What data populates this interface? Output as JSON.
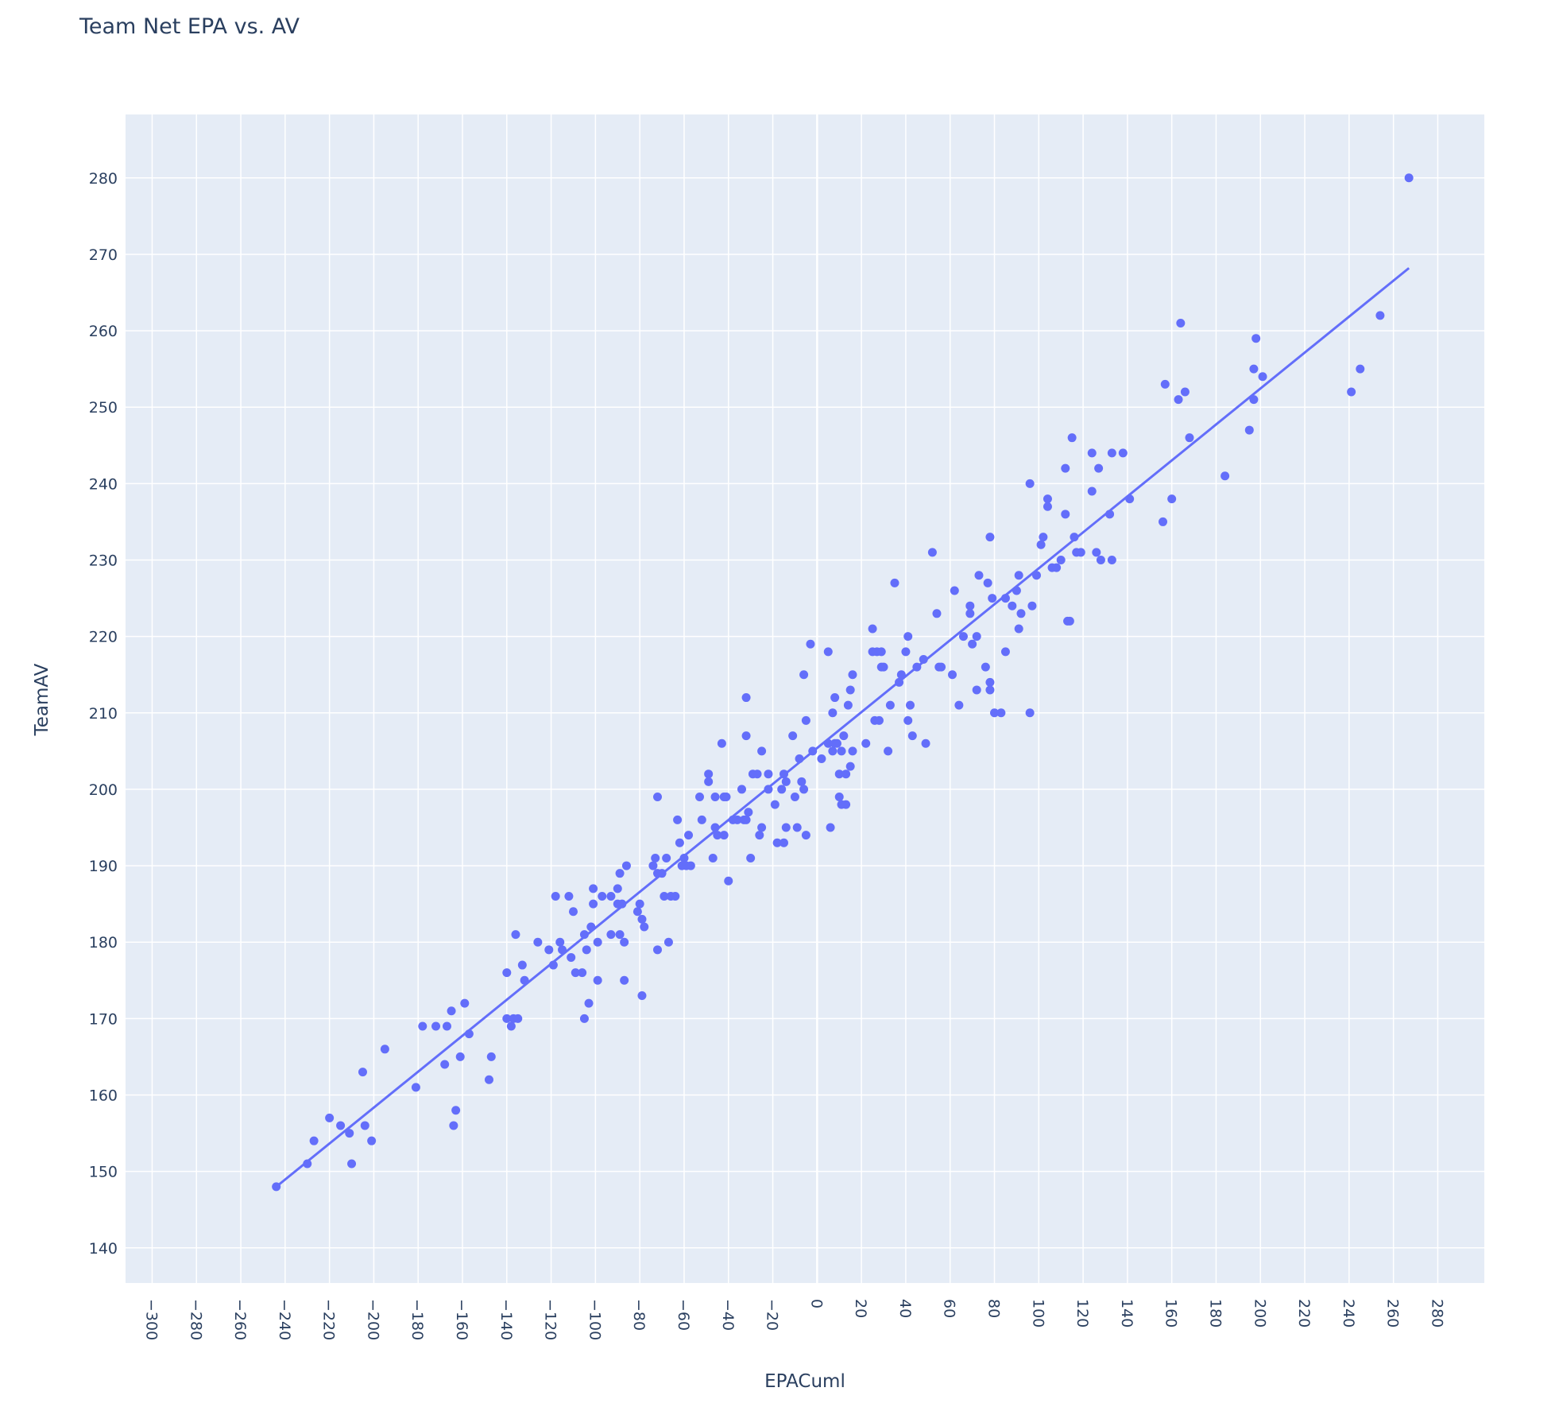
{
  "chart_data": {
    "type": "scatter",
    "title": "Team Net EPA vs. AV",
    "xlabel": "EPACuml",
    "ylabel": "TeamAV",
    "xlim": [
      -312,
      301
    ],
    "ylim": [
      135.4,
      288.3
    ],
    "x_ticks": [
      -300,
      -280,
      -260,
      -240,
      -220,
      -200,
      -180,
      -160,
      -140,
      -120,
      -100,
      -80,
      -60,
      -40,
      -20,
      0,
      20,
      40,
      60,
      80,
      100,
      120,
      140,
      160,
      180,
      200,
      220,
      240,
      260,
      280
    ],
    "y_ticks": [
      140,
      150,
      160,
      170,
      180,
      190,
      200,
      210,
      220,
      230,
      240,
      250,
      260,
      270,
      280
    ],
    "grid": true,
    "legend": "none",
    "colors": {
      "marker": "#636efa",
      "trendline": "#636efa",
      "plot_bg": "#e5ecf6",
      "grid": "#ffffff",
      "text": "#2a3f5f"
    },
    "trendline": {
      "x": [
        -244,
        267
      ],
      "y": [
        148.0,
        268.2
      ]
    },
    "points": [
      [
        -244,
        148
      ],
      [
        -230,
        151
      ],
      [
        -227,
        154
      ],
      [
        -220,
        157
      ],
      [
        -215,
        156
      ],
      [
        -211,
        155
      ],
      [
        -210,
        151
      ],
      [
        -205,
        163
      ],
      [
        -204,
        156
      ],
      [
        -201,
        154
      ],
      [
        -195,
        166
      ],
      [
        -181,
        161
      ],
      [
        -178,
        169
      ],
      [
        -172,
        169
      ],
      [
        -168,
        164
      ],
      [
        -167,
        169
      ],
      [
        -165,
        171
      ],
      [
        -164,
        156
      ],
      [
        -163,
        158
      ],
      [
        -161,
        165
      ],
      [
        -159,
        172
      ],
      [
        -157,
        168
      ],
      [
        -148,
        162
      ],
      [
        -147,
        165
      ],
      [
        -140,
        176
      ],
      [
        -140,
        170
      ],
      [
        -138,
        169
      ],
      [
        -137,
        170
      ],
      [
        -136,
        181
      ],
      [
        -135,
        170
      ],
      [
        -133,
        177
      ],
      [
        -132,
        175
      ],
      [
        -126,
        180
      ],
      [
        -121,
        179
      ],
      [
        -119,
        177
      ],
      [
        -118,
        186
      ],
      [
        -116,
        180
      ],
      [
        -115,
        179
      ],
      [
        -112,
        186
      ],
      [
        -111,
        178
      ],
      [
        -110,
        184
      ],
      [
        -109,
        176
      ],
      [
        -106,
        176
      ],
      [
        -105,
        170
      ],
      [
        -105,
        181
      ],
      [
        -104,
        179
      ],
      [
        -103,
        172
      ],
      [
        -102,
        182
      ],
      [
        -101,
        185
      ],
      [
        -101,
        187
      ],
      [
        -99,
        180
      ],
      [
        -99,
        175
      ],
      [
        -97,
        186
      ],
      [
        -93,
        186
      ],
      [
        -93,
        181
      ],
      [
        -90,
        185
      ],
      [
        -90,
        187
      ],
      [
        -89,
        189
      ],
      [
        -89,
        181
      ],
      [
        -88,
        185
      ],
      [
        -87,
        180
      ],
      [
        -87,
        175
      ],
      [
        -86,
        190
      ],
      [
        -81,
        184
      ],
      [
        -80,
        185
      ],
      [
        -79,
        173
      ],
      [
        -79,
        183
      ],
      [
        -78,
        182
      ],
      [
        -74,
        190
      ],
      [
        -73,
        191
      ],
      [
        -72,
        179
      ],
      [
        -72,
        199
      ],
      [
        -72,
        189
      ],
      [
        -70,
        189
      ],
      [
        -69,
        186
      ],
      [
        -68,
        191
      ],
      [
        -67,
        180
      ],
      [
        -66,
        186
      ],
      [
        -64,
        186
      ],
      [
        -63,
        196
      ],
      [
        -62,
        193
      ],
      [
        -61,
        190
      ],
      [
        -60,
        191
      ],
      [
        -59,
        190
      ],
      [
        -58,
        194
      ],
      [
        -57,
        190
      ],
      [
        -53,
        199
      ],
      [
        -52,
        196
      ],
      [
        -49,
        202
      ],
      [
        -49,
        201
      ],
      [
        -47,
        191
      ],
      [
        -46,
        199
      ],
      [
        -46,
        195
      ],
      [
        -45,
        194
      ],
      [
        -43,
        206
      ],
      [
        -42,
        199
      ],
      [
        -41,
        199
      ],
      [
        -42,
        194
      ],
      [
        -40,
        188
      ],
      [
        -38,
        196
      ],
      [
        -36,
        196
      ],
      [
        -34,
        200
      ],
      [
        -33,
        196
      ],
      [
        -32,
        196
      ],
      [
        -32,
        207
      ],
      [
        -32,
        212
      ],
      [
        -31,
        197
      ],
      [
        -30,
        191
      ],
      [
        -29,
        202
      ],
      [
        -27,
        202
      ],
      [
        -26,
        194
      ],
      [
        -25,
        195
      ],
      [
        -25,
        205
      ],
      [
        -22,
        202
      ],
      [
        -22,
        200
      ],
      [
        -19,
        198
      ],
      [
        -18,
        193
      ],
      [
        -16,
        200
      ],
      [
        -15,
        193
      ],
      [
        -15,
        202
      ],
      [
        -14,
        195
      ],
      [
        -14,
        201
      ],
      [
        -11,
        207
      ],
      [
        -10,
        199
      ],
      [
        -9,
        195
      ],
      [
        -8,
        204
      ],
      [
        -7,
        201
      ],
      [
        -6,
        215
      ],
      [
        -6,
        200
      ],
      [
        -5,
        194
      ],
      [
        -5,
        209
      ],
      [
        -3,
        219
      ],
      [
        -2,
        205
      ],
      [
        2,
        204
      ],
      [
        5,
        218
      ],
      [
        5,
        206
      ],
      [
        6,
        195
      ],
      [
        7,
        210
      ],
      [
        7,
        205
      ],
      [
        8,
        206
      ],
      [
        8,
        212
      ],
      [
        9,
        206
      ],
      [
        10,
        202
      ],
      [
        10,
        199
      ],
      [
        11,
        205
      ],
      [
        11,
        198
      ],
      [
        12,
        207
      ],
      [
        13,
        198
      ],
      [
        13,
        202
      ],
      [
        14,
        211
      ],
      [
        15,
        203
      ],
      [
        15,
        213
      ],
      [
        16,
        215
      ],
      [
        16,
        205
      ],
      [
        22,
        206
      ],
      [
        25,
        221
      ],
      [
        25,
        218
      ],
      [
        26,
        209
      ],
      [
        27,
        218
      ],
      [
        28,
        209
      ],
      [
        29,
        218
      ],
      [
        29,
        216
      ],
      [
        30,
        216
      ],
      [
        32,
        205
      ],
      [
        33,
        211
      ],
      [
        35,
        227
      ],
      [
        37,
        214
      ],
      [
        38,
        215
      ],
      [
        40,
        218
      ],
      [
        41,
        209
      ],
      [
        41,
        220
      ],
      [
        42,
        211
      ],
      [
        43,
        207
      ],
      [
        45,
        216
      ],
      [
        48,
        217
      ],
      [
        49,
        206
      ],
      [
        52,
        231
      ],
      [
        54,
        223
      ],
      [
        55,
        216
      ],
      [
        56,
        216
      ],
      [
        61,
        215
      ],
      [
        62,
        226
      ],
      [
        64,
        211
      ],
      [
        66,
        220
      ],
      [
        69,
        223
      ],
      [
        69,
        224
      ],
      [
        70,
        219
      ],
      [
        72,
        220
      ],
      [
        72,
        213
      ],
      [
        73,
        228
      ],
      [
        76,
        216
      ],
      [
        77,
        227
      ],
      [
        78,
        214
      ],
      [
        78,
        213
      ],
      [
        78,
        233
      ],
      [
        79,
        225
      ],
      [
        80,
        210
      ],
      [
        83,
        210
      ],
      [
        85,
        218
      ],
      [
        85,
        225
      ],
      [
        88,
        224
      ],
      [
        90,
        226
      ],
      [
        91,
        221
      ],
      [
        91,
        228
      ],
      [
        92,
        223
      ],
      [
        96,
        240
      ],
      [
        96,
        210
      ],
      [
        97,
        224
      ],
      [
        99,
        228
      ],
      [
        101,
        232
      ],
      [
        102,
        233
      ],
      [
        104,
        238
      ],
      [
        104,
        237
      ],
      [
        106,
        229
      ],
      [
        108,
        229
      ],
      [
        110,
        230
      ],
      [
        112,
        236
      ],
      [
        112,
        242
      ],
      [
        113,
        222
      ],
      [
        114,
        222
      ],
      [
        115,
        246
      ],
      [
        116,
        233
      ],
      [
        117,
        231
      ],
      [
        119,
        231
      ],
      [
        124,
        244
      ],
      [
        124,
        239
      ],
      [
        126,
        231
      ],
      [
        127,
        242
      ],
      [
        128,
        230
      ],
      [
        132,
        236
      ],
      [
        133,
        244
      ],
      [
        133,
        230
      ],
      [
        138,
        244
      ],
      [
        141,
        238
      ],
      [
        156,
        235
      ],
      [
        157,
        253
      ],
      [
        160,
        238
      ],
      [
        163,
        251
      ],
      [
        164,
        261
      ],
      [
        166,
        252
      ],
      [
        168,
        246
      ],
      [
        184,
        241
      ],
      [
        195,
        247
      ],
      [
        197,
        251
      ],
      [
        197,
        255
      ],
      [
        198,
        259
      ],
      [
        201,
        254
      ],
      [
        241,
        252
      ],
      [
        245,
        255
      ],
      [
        254,
        262
      ],
      [
        267,
        280
      ]
    ]
  }
}
